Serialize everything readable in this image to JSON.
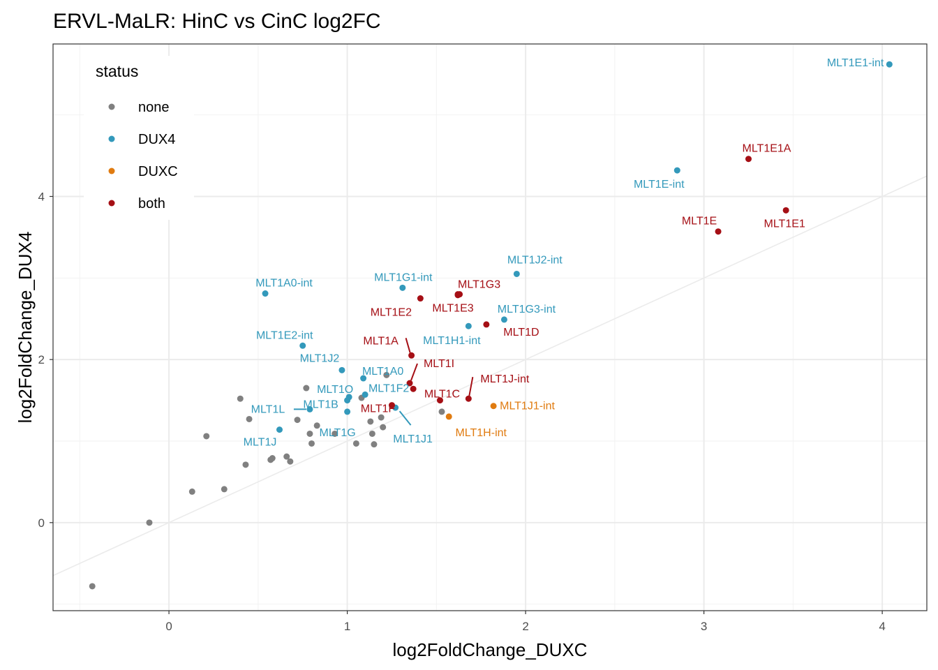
{
  "chart_data": {
    "type": "scatter",
    "title": "ERVL-MaLR: HinC vs CinC log2FC",
    "xlabel": "log2FoldChange_DUXC",
    "ylabel": "log2FoldChange_DUX4",
    "xlim": [
      -0.65,
      4.25
    ],
    "ylim": [
      -1.08,
      5.87
    ],
    "x_ticks": [
      0,
      1,
      2,
      3,
      4
    ],
    "y_ticks": [
      0,
      2,
      4
    ],
    "x_tick_labels": [
      "0",
      "1",
      "2",
      "3",
      "4"
    ],
    "y_tick_labels": [
      "0",
      "2",
      "4"
    ],
    "grid": true,
    "reference_line": {
      "slope": 1,
      "intercept": 0
    },
    "legend": {
      "title": "status",
      "position": "top-left",
      "entries": [
        {
          "label": "none",
          "color": "#808080"
        },
        {
          "label": "DUX4",
          "color": "#3399BB"
        },
        {
          "label": "DUXC",
          "color": "#E07B10"
        },
        {
          "label": "both",
          "color": "#A50F15"
        }
      ]
    },
    "points": [
      {
        "x": -0.43,
        "y": -0.78,
        "status": "none"
      },
      {
        "x": -0.11,
        "y": 0.0,
        "status": "none"
      },
      {
        "x": 0.13,
        "y": 0.38,
        "status": "none"
      },
      {
        "x": 0.21,
        "y": 1.06,
        "status": "none"
      },
      {
        "x": 0.31,
        "y": 0.41,
        "status": "none"
      },
      {
        "x": 0.4,
        "y": 1.52,
        "status": "none"
      },
      {
        "x": 0.43,
        "y": 0.71,
        "status": "none"
      },
      {
        "x": 0.45,
        "y": 1.27,
        "status": "none"
      },
      {
        "x": 0.57,
        "y": 0.77,
        "status": "none"
      },
      {
        "x": 0.58,
        "y": 0.79,
        "status": "none"
      },
      {
        "x": 0.66,
        "y": 0.81,
        "status": "none"
      },
      {
        "x": 0.68,
        "y": 0.75,
        "status": "none"
      },
      {
        "x": 0.72,
        "y": 1.26,
        "status": "none"
      },
      {
        "x": 0.77,
        "y": 1.65,
        "status": "none"
      },
      {
        "x": 0.79,
        "y": 1.09,
        "status": "none"
      },
      {
        "x": 0.8,
        "y": 0.97,
        "status": "none"
      },
      {
        "x": 0.83,
        "y": 1.19,
        "status": "none"
      },
      {
        "x": 0.93,
        "y": 1.09,
        "status": "none"
      },
      {
        "x": 1.05,
        "y": 0.97,
        "status": "none"
      },
      {
        "x": 1.08,
        "y": 1.53,
        "status": "none"
      },
      {
        "x": 1.13,
        "y": 1.24,
        "status": "none"
      },
      {
        "x": 1.14,
        "y": 1.09,
        "status": "none"
      },
      {
        "x": 1.15,
        "y": 0.96,
        "status": "none"
      },
      {
        "x": 1.19,
        "y": 1.29,
        "status": "none"
      },
      {
        "x": 1.2,
        "y": 1.17,
        "status": "none"
      },
      {
        "x": 1.22,
        "y": 1.81,
        "status": "none"
      },
      {
        "x": 1.53,
        "y": 1.36,
        "status": "none"
      },
      {
        "x": 4.04,
        "y": 5.62,
        "status": "DUX4",
        "label": "MLT1E1-int"
      },
      {
        "x": 2.85,
        "y": 4.32,
        "status": "DUX4",
        "label": "MLT1E-int"
      },
      {
        "x": 1.95,
        "y": 3.05,
        "status": "DUX4",
        "label": "MLT1J2-int"
      },
      {
        "x": 1.31,
        "y": 2.88,
        "status": "DUX4",
        "label": "MLT1G1-int"
      },
      {
        "x": 0.54,
        "y": 2.81,
        "status": "DUX4",
        "label": "MLT1A0-int"
      },
      {
        "x": 1.88,
        "y": 2.49,
        "status": "DUX4",
        "label": "MLT1G3-int"
      },
      {
        "x": 1.68,
        "y": 2.41,
        "status": "DUX4",
        "label": "MLT1H1-int"
      },
      {
        "x": 0.75,
        "y": 2.17,
        "status": "DUX4",
        "label": "MLT1E2-int"
      },
      {
        "x": 0.97,
        "y": 1.87,
        "status": "DUX4",
        "label": "MLT1J2"
      },
      {
        "x": 1.09,
        "y": 1.77,
        "status": "DUX4",
        "label": "MLT1A0"
      },
      {
        "x": 1.01,
        "y": 1.54,
        "status": "DUX4",
        "label": "MLT1O"
      },
      {
        "x": 1.1,
        "y": 1.57,
        "status": "DUX4",
        "label": "MLT1F2"
      },
      {
        "x": 1.0,
        "y": 1.5,
        "status": "DUX4",
        "label": "MLT1B"
      },
      {
        "x": 0.79,
        "y": 1.39,
        "status": "DUX4",
        "label": "MLT1L"
      },
      {
        "x": 1.27,
        "y": 1.41,
        "status": "DUX4",
        "label": "MLT1J1"
      },
      {
        "x": 1.0,
        "y": 1.36,
        "status": "DUX4",
        "label": "MLT1G"
      },
      {
        "x": 0.62,
        "y": 1.14,
        "status": "DUX4",
        "label": "MLT1J"
      },
      {
        "x": 1.82,
        "y": 1.43,
        "status": "DUXC",
        "label": "MLT1J1-int"
      },
      {
        "x": 1.57,
        "y": 1.3,
        "status": "DUXC",
        "label": "MLT1H-int"
      },
      {
        "x": 3.25,
        "y": 4.46,
        "status": "both",
        "label": "MLT1E1A"
      },
      {
        "x": 3.46,
        "y": 3.83,
        "status": "both",
        "label": "MLT1E1"
      },
      {
        "x": 3.08,
        "y": 3.57,
        "status": "both",
        "label": "MLT1E"
      },
      {
        "x": 1.63,
        "y": 2.8,
        "status": "both",
        "label": "MLT1G3"
      },
      {
        "x": 1.62,
        "y": 2.79,
        "status": "both"
      },
      {
        "x": 1.41,
        "y": 2.75,
        "status": "both",
        "label": "MLT1E2"
      },
      {
        "x": 1.78,
        "y": 2.43,
        "status": "both",
        "label": "MLT1D"
      },
      {
        "x": 1.62,
        "y": 2.8,
        "status": "both",
        "label": "MLT1E3"
      },
      {
        "x": 1.36,
        "y": 2.05,
        "status": "both",
        "label": "MLT1A"
      },
      {
        "x": 1.35,
        "y": 1.71,
        "status": "both",
        "label": "MLT1I"
      },
      {
        "x": 1.37,
        "y": 1.64,
        "status": "both"
      },
      {
        "x": 1.68,
        "y": 1.52,
        "status": "both",
        "label": "MLT1J-int"
      },
      {
        "x": 1.25,
        "y": 1.44,
        "status": "both",
        "label": "MLT1F"
      },
      {
        "x": 1.52,
        "y": 1.5,
        "status": "both",
        "label": "MLT1C"
      }
    ]
  }
}
